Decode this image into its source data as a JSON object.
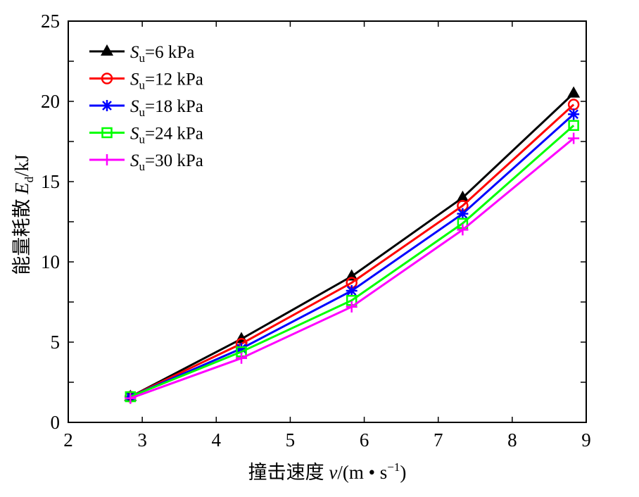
{
  "chart_data": {
    "type": "line",
    "title": "",
    "xlabel": {
      "prefix": "撞击速度 ",
      "var": "v",
      "unit_open": "/(m • s",
      "sup": "−1",
      "unit_close": ")"
    },
    "ylabel": {
      "prefix": "能量耗散 ",
      "var": "E",
      "sub": "d",
      "unit": "/kJ"
    },
    "xlim": [
      2,
      9
    ],
    "ylim": [
      0,
      25
    ],
    "xticks": [
      "2",
      "3",
      "4",
      "5",
      "6",
      "7",
      "8",
      "9"
    ],
    "yticks": [
      "0",
      "5",
      "10",
      "15",
      "20",
      "25"
    ],
    "grid": false,
    "legend_position": "top-left",
    "x": [
      2.84,
      4.34,
      5.83,
      7.33,
      8.83
    ],
    "series": [
      {
        "symbol": "S",
        "sub": "u",
        "rest": "=6 kPa",
        "color": "#000000",
        "marker": "triangle",
        "values": [
          1.6,
          5.2,
          9.1,
          14.0,
          20.5
        ]
      },
      {
        "symbol": "S",
        "sub": "u",
        "rest": "=12 kPa",
        "color": "#ff0000",
        "marker": "circle",
        "values": [
          1.6,
          4.9,
          8.7,
          13.5,
          19.8
        ]
      },
      {
        "symbol": "S",
        "sub": "u",
        "rest": "=18 kPa",
        "color": "#0000ff",
        "marker": "asterisk",
        "values": [
          1.6,
          4.6,
          8.2,
          13.0,
          19.2
        ]
      },
      {
        "symbol": "S",
        "sub": "u",
        "rest": "=24 kPa",
        "color": "#00ff00",
        "marker": "square",
        "values": [
          1.6,
          4.4,
          7.6,
          12.4,
          18.5
        ]
      },
      {
        "symbol": "S",
        "sub": "u",
        "rest": "=30 kPa",
        "color": "#ff00ff",
        "marker": "plus",
        "values": [
          1.5,
          4.0,
          7.2,
          12.0,
          17.7
        ]
      }
    ]
  }
}
